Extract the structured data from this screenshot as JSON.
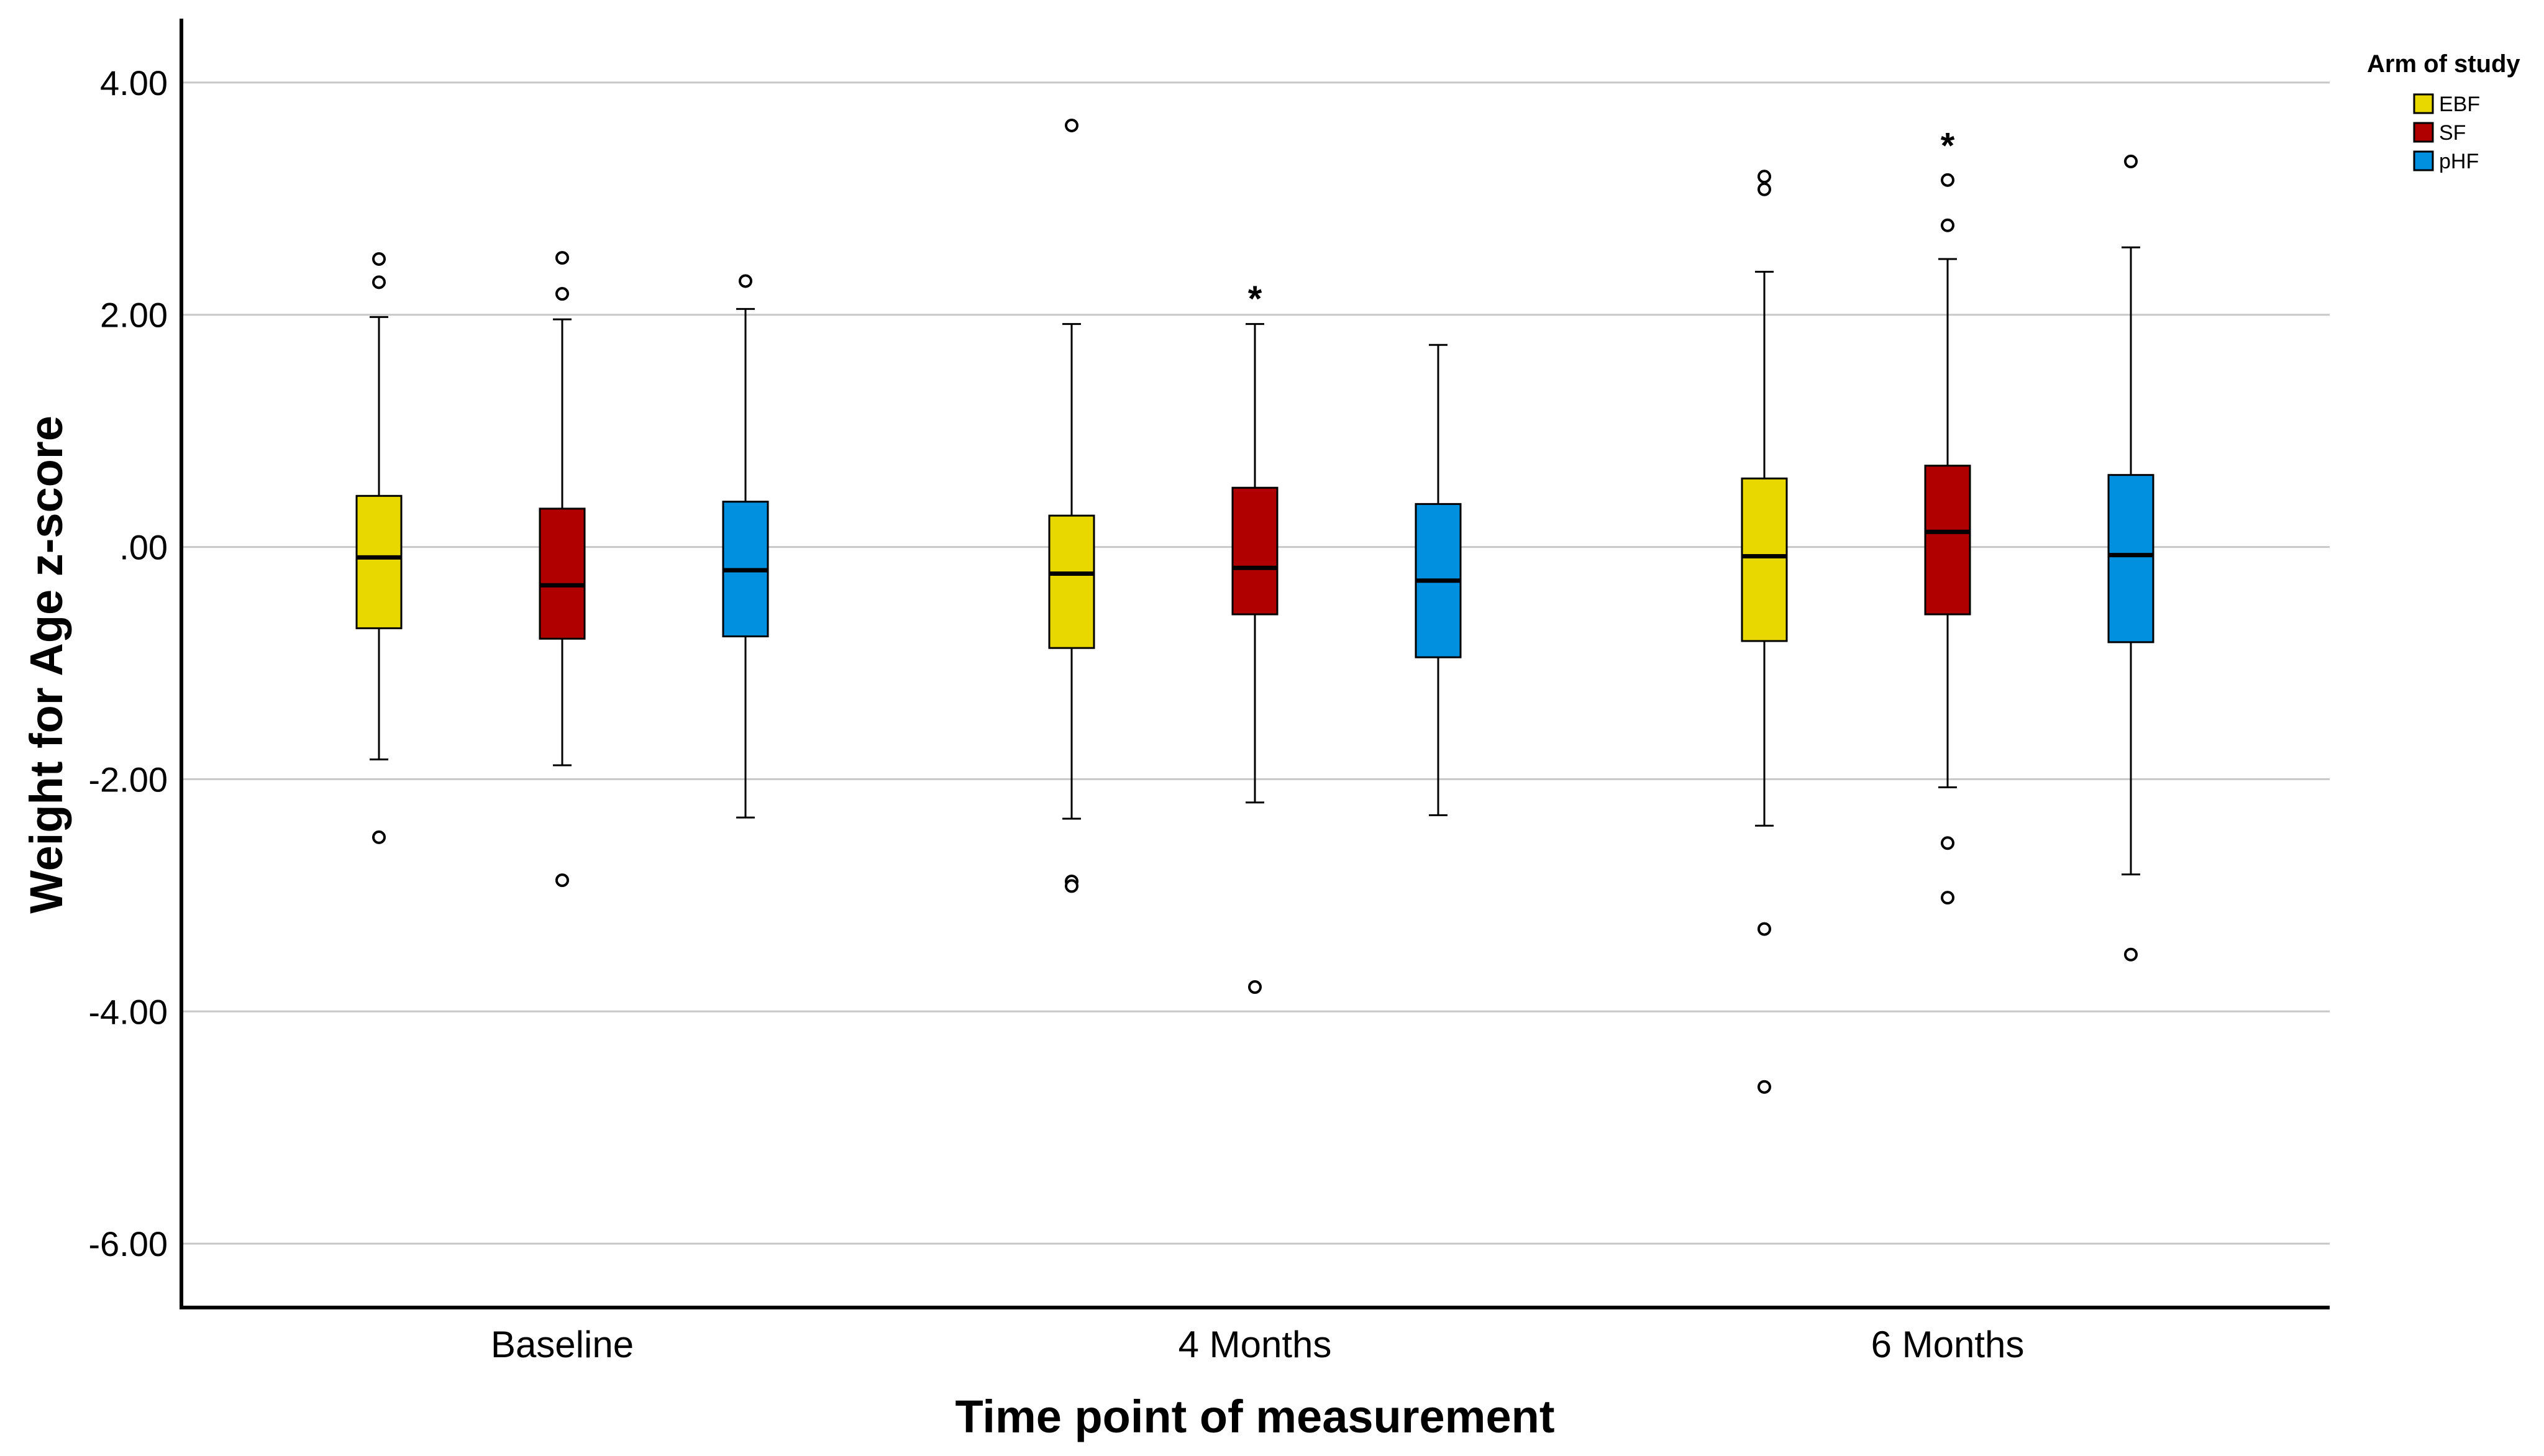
{
  "chart_data": {
    "type": "boxplot",
    "title": "",
    "xlabel": "Time point of measurement",
    "ylabel": "Weight for Age z-score",
    "ylim": [
      -6.55,
      4.55
    ],
    "yticks": [
      4,
      2,
      0,
      -2,
      -4,
      -6
    ],
    "ytick_labels": [
      "4.00",
      "2.00",
      ".00",
      "-2.00",
      "-4.00",
      "-6.00"
    ],
    "grid": true,
    "categories": [
      "Baseline",
      "4 Months",
      "6 Months"
    ],
    "legend": {
      "title": "Arm of study",
      "position": "top-right"
    },
    "series": [
      {
        "name": "EBF",
        "color": "#e8d800",
        "boxes": [
          {
            "whisker_low": -1.83,
            "q1": -0.7,
            "median": -0.09,
            "q3": 0.44,
            "whisker_high": 1.98,
            "outliers": [
              2.48,
              2.28,
              -2.5
            ],
            "extremes": []
          },
          {
            "whisker_low": -2.34,
            "q1": -0.87,
            "median": -0.23,
            "q3": 0.27,
            "whisker_high": 1.92,
            "outliers": [
              3.63,
              -2.88,
              -2.92
            ],
            "extremes": []
          },
          {
            "whisker_low": -2.4,
            "q1": -0.81,
            "median": -0.08,
            "q3": 0.59,
            "whisker_high": 2.37,
            "outliers": [
              3.19,
              3.08,
              -3.29,
              -4.65
            ],
            "extremes": []
          }
        ]
      },
      {
        "name": "SF",
        "color": "#b00000",
        "boxes": [
          {
            "whisker_low": -1.88,
            "q1": -0.79,
            "median": -0.33,
            "q3": 0.33,
            "whisker_high": 1.96,
            "outliers": [
              2.49,
              2.18,
              -2.87
            ],
            "extremes": []
          },
          {
            "whisker_low": -2.2,
            "q1": -0.58,
            "median": -0.18,
            "q3": 0.51,
            "whisker_high": 1.92,
            "outliers": [
              -3.79
            ],
            "extremes": [
              2.18
            ]
          },
          {
            "whisker_low": -2.07,
            "q1": -0.58,
            "median": 0.13,
            "q3": 0.7,
            "whisker_high": 2.48,
            "outliers": [
              3.16,
              2.77,
              -2.55,
              -3.02
            ],
            "extremes": [
              3.5
            ]
          }
        ]
      },
      {
        "name": "pHF",
        "color": "#0090e0",
        "boxes": [
          {
            "whisker_low": -2.33,
            "q1": -0.77,
            "median": -0.2,
            "q3": 0.39,
            "whisker_high": 2.05,
            "outliers": [
              2.29
            ],
            "extremes": []
          },
          {
            "whisker_low": -2.31,
            "q1": -0.95,
            "median": -0.29,
            "q3": 0.37,
            "whisker_high": 1.74,
            "outliers": [],
            "extremes": []
          },
          {
            "whisker_low": -2.82,
            "q1": -0.82,
            "median": -0.07,
            "q3": 0.62,
            "whisker_high": 2.58,
            "outliers": [
              3.32,
              -3.51
            ],
            "extremes": []
          }
        ]
      }
    ]
  }
}
